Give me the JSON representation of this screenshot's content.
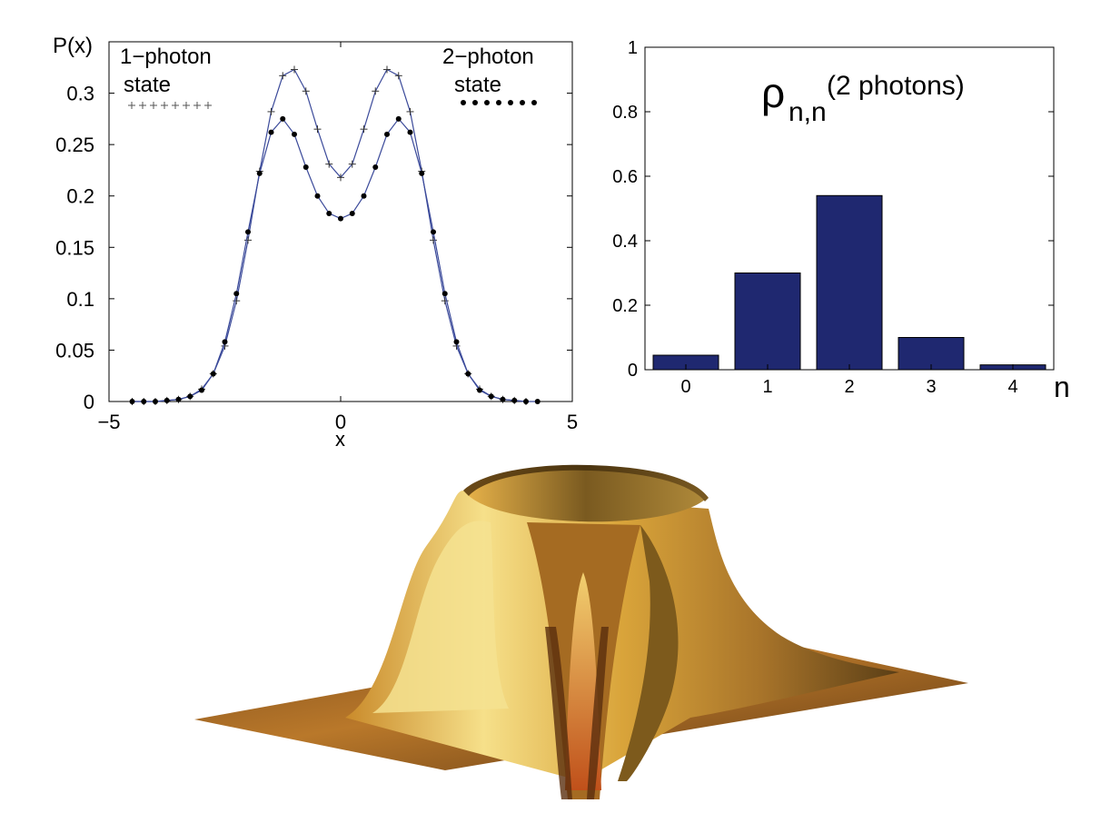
{
  "chart_data": [
    {
      "type": "line",
      "title": "",
      "ylabel": "P(x)",
      "xlabel": "x",
      "xlim": [
        -5,
        5
      ],
      "ylim": [
        0,
        0.35
      ],
      "xticks": [
        "−5",
        "0",
        "5"
      ],
      "yticks": [
        "0",
        "0.05",
        "0.1",
        "0.15",
        "0.2",
        "0.25",
        "0.3"
      ],
      "legend": [
        {
          "line1": "1−photon",
          "line2": "state",
          "marker": "+"
        },
        {
          "line1": "2−photon",
          "line2": "state",
          "marker": "•"
        }
      ],
      "series": [
        {
          "name": "1-photon state",
          "marker": "+",
          "x": [
            -4.5,
            -4.25,
            -4.0,
            -3.75,
            -3.5,
            -3.25,
            -3.0,
            -2.75,
            -2.5,
            -2.25,
            -2.0,
            -1.75,
            -1.5,
            -1.25,
            -1.0,
            -0.75,
            -0.5,
            -0.25,
            0.0,
            0.25,
            0.5,
            0.75,
            1.0,
            1.25,
            1.5,
            1.75,
            2.0,
            2.25,
            2.5,
            2.75,
            3.0,
            3.25,
            3.5,
            3.75,
            4.0
          ],
          "values": [
            0.0,
            0.0,
            0.0,
            0.001,
            0.002,
            0.005,
            0.012,
            0.027,
            0.054,
            0.098,
            0.157,
            0.224,
            0.282,
            0.317,
            0.323,
            0.302,
            0.265,
            0.231,
            0.218,
            0.231,
            0.265,
            0.302,
            0.323,
            0.317,
            0.282,
            0.224,
            0.157,
            0.098,
            0.054,
            0.027,
            0.012,
            0.005,
            0.002,
            0.001,
            0.0
          ]
        },
        {
          "name": "2-photon state",
          "marker": "•",
          "x": [
            -4.5,
            -4.25,
            -4.0,
            -3.75,
            -3.5,
            -3.25,
            -3.0,
            -2.75,
            -2.5,
            -2.25,
            -2.0,
            -1.75,
            -1.5,
            -1.25,
            -1.0,
            -0.75,
            -0.5,
            -0.25,
            0.0,
            0.25,
            0.5,
            0.75,
            1.0,
            1.25,
            1.5,
            1.75,
            2.0,
            2.25,
            2.5,
            2.75,
            3.0,
            3.25,
            3.5,
            3.75,
            4.0,
            4.25
          ],
          "values": [
            0.0,
            0.0,
            0.0,
            0.001,
            0.002,
            0.005,
            0.011,
            0.027,
            0.058,
            0.105,
            0.165,
            0.222,
            0.262,
            0.275,
            0.26,
            0.228,
            0.2,
            0.183,
            0.178,
            0.183,
            0.2,
            0.228,
            0.26,
            0.275,
            0.262,
            0.222,
            0.165,
            0.105,
            0.058,
            0.027,
            0.011,
            0.005,
            0.002,
            0.001,
            0.0,
            0.0
          ]
        }
      ]
    },
    {
      "type": "bar",
      "title_symbol": "ρ",
      "title_subscript": "n,n",
      "title_superscript": "(2 photons)",
      "xlabel": "n",
      "categories": [
        "0",
        "1",
        "2",
        "3",
        "4"
      ],
      "values": [
        0.045,
        0.3,
        0.54,
        0.1,
        0.015
      ],
      "ylim": [
        0,
        1
      ],
      "yticks": [
        "0",
        "0.2",
        "0.4",
        "0.6",
        "0.8",
        "1"
      ],
      "bar_color": "#1f2870"
    },
    {
      "type": "surface",
      "description_colors": {
        "light": "#f3d66a",
        "mid": "#d9a43a",
        "dark": "#6e4a1a"
      }
    }
  ]
}
